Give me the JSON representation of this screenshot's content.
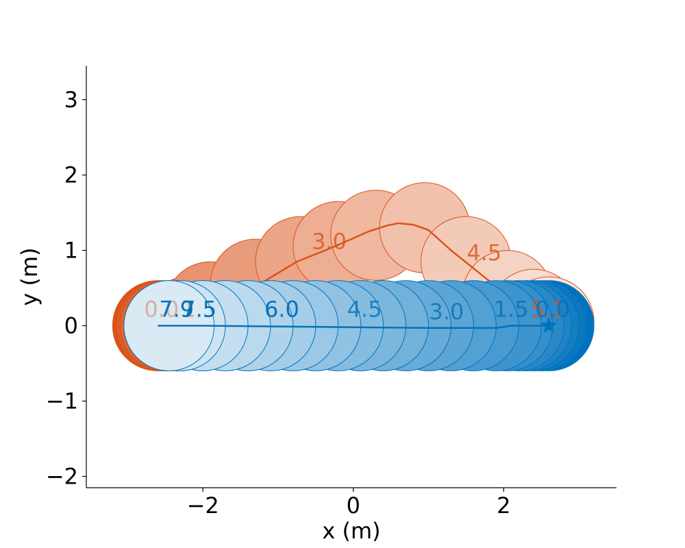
{
  "chart_data": {
    "type": "scatter",
    "title": "",
    "xlabel": "x (m)",
    "ylabel": "y (m)",
    "xlim": [
      -3.55,
      3.5
    ],
    "ylim": [
      -2.15,
      3.45
    ],
    "xticks": [
      -2,
      0,
      2
    ],
    "yticks": [
      -2,
      -1,
      0,
      1,
      2,
      3
    ],
    "xtick_labels": [
      "−2",
      "0",
      "2"
    ],
    "ytick_labels": [
      "−2",
      "−1",
      "0",
      "1",
      "2",
      "3"
    ],
    "agent_radius": 0.6,
    "grid": false,
    "series": [
      {
        "color": "#D95319",
        "start": [
          -2.0,
          0.05
        ],
        "goal": [
          2.6,
          0.0
        ],
        "path": [
          [
            -2.0,
            0.05
          ],
          [
            -1.7,
            0.25
          ],
          [
            -1.25,
            0.55
          ],
          [
            -0.75,
            0.85
          ],
          [
            -0.25,
            1.05
          ],
          [
            0.2,
            1.25
          ],
          [
            0.45,
            1.33
          ],
          [
            0.6,
            1.36
          ],
          [
            0.8,
            1.34
          ],
          [
            1.0,
            1.27
          ],
          [
            1.3,
            1.0
          ],
          [
            1.65,
            0.72
          ],
          [
            2.05,
            0.4
          ],
          [
            2.4,
            0.15
          ],
          [
            2.6,
            0.0
          ]
        ],
        "circles": [
          [
            -2.6,
            0.0
          ],
          [
            -2.55,
            0.0
          ],
          [
            -2.5,
            0.0
          ],
          [
            -2.45,
            0.0
          ],
          [
            -2.4,
            0.0
          ],
          [
            -2.3,
            0.0
          ],
          [
            -2.2,
            0.05
          ],
          [
            -1.9,
            0.25
          ],
          [
            -1.3,
            0.55
          ],
          [
            -0.7,
            0.85
          ],
          [
            -0.2,
            1.05
          ],
          [
            0.3,
            1.2
          ],
          [
            0.95,
            1.3
          ],
          [
            1.5,
            0.85
          ],
          [
            2.05,
            0.4
          ],
          [
            2.4,
            0.15
          ],
          [
            2.6,
            0.05
          ]
        ],
        "time_labels": [
          {
            "text": "0.0",
            "x": -2.55,
            "y": 0.2,
            "opacity": 0.4
          },
          {
            "text": "1.5",
            "x": -2.05,
            "y": 0.2,
            "opacity": 0.5
          },
          {
            "text": "3.0",
            "x": -0.32,
            "y": 1.1,
            "opacity": 0.8
          },
          {
            "text": "4.5",
            "x": 1.74,
            "y": 0.95,
            "opacity": 0.8
          },
          {
            "text": "5.1",
            "x": 2.59,
            "y": 0.2,
            "opacity": 0.8
          }
        ]
      },
      {
        "color": "#0072BD",
        "start": [
          -2.6,
          0.0
        ],
        "goal": [
          2.6,
          0.0
        ],
        "path": [
          [
            -2.6,
            0.0
          ],
          [
            -2.0,
            0.0
          ],
          [
            -1.0,
            -0.01
          ],
          [
            0.0,
            -0.02
          ],
          [
            1.0,
            -0.03
          ],
          [
            1.9,
            -0.03
          ],
          [
            2.1,
            0.0
          ],
          [
            2.6,
            0.0
          ]
        ],
        "circles": [
          [
            2.6,
            0.0
          ],
          [
            2.5,
            0.0
          ],
          [
            2.4,
            0.0
          ],
          [
            2.3,
            0.0
          ],
          [
            2.2,
            0.0
          ],
          [
            2.05,
            0.0
          ],
          [
            1.9,
            0.0
          ],
          [
            1.6,
            0.0
          ],
          [
            1.3,
            0.0
          ],
          [
            1.0,
            0.0
          ],
          [
            0.7,
            0.0
          ],
          [
            0.4,
            0.0
          ],
          [
            0.1,
            0.0
          ],
          [
            -0.2,
            0.0
          ],
          [
            -0.5,
            0.0
          ],
          [
            -0.8,
            0.0
          ],
          [
            -1.1,
            0.0
          ],
          [
            -1.4,
            0.0
          ],
          [
            -1.7,
            0.0
          ],
          [
            -2.0,
            0.0
          ],
          [
            -2.3,
            0.0
          ],
          [
            -2.45,
            0.0
          ]
        ],
        "time_labels": [
          {
            "text": "0.0",
            "x": 2.65,
            "y": 0.2,
            "opacity": 0.8
          },
          {
            "text": "1.5",
            "x": 2.1,
            "y": 0.2,
            "opacity": 0.8
          },
          {
            "text": "3.0",
            "x": 1.24,
            "y": 0.17,
            "opacity": 0.8
          },
          {
            "text": "4.5",
            "x": 0.15,
            "y": 0.2,
            "opacity": 0.8
          },
          {
            "text": "6.0",
            "x": -0.95,
            "y": 0.2,
            "opacity": 1.0
          },
          {
            "text": "7.5",
            "x": -2.05,
            "y": 0.2,
            "opacity": 1.0
          },
          {
            "text": "7.9",
            "x": -2.35,
            "y": 0.2,
            "opacity": 1.0
          }
        ]
      }
    ]
  }
}
